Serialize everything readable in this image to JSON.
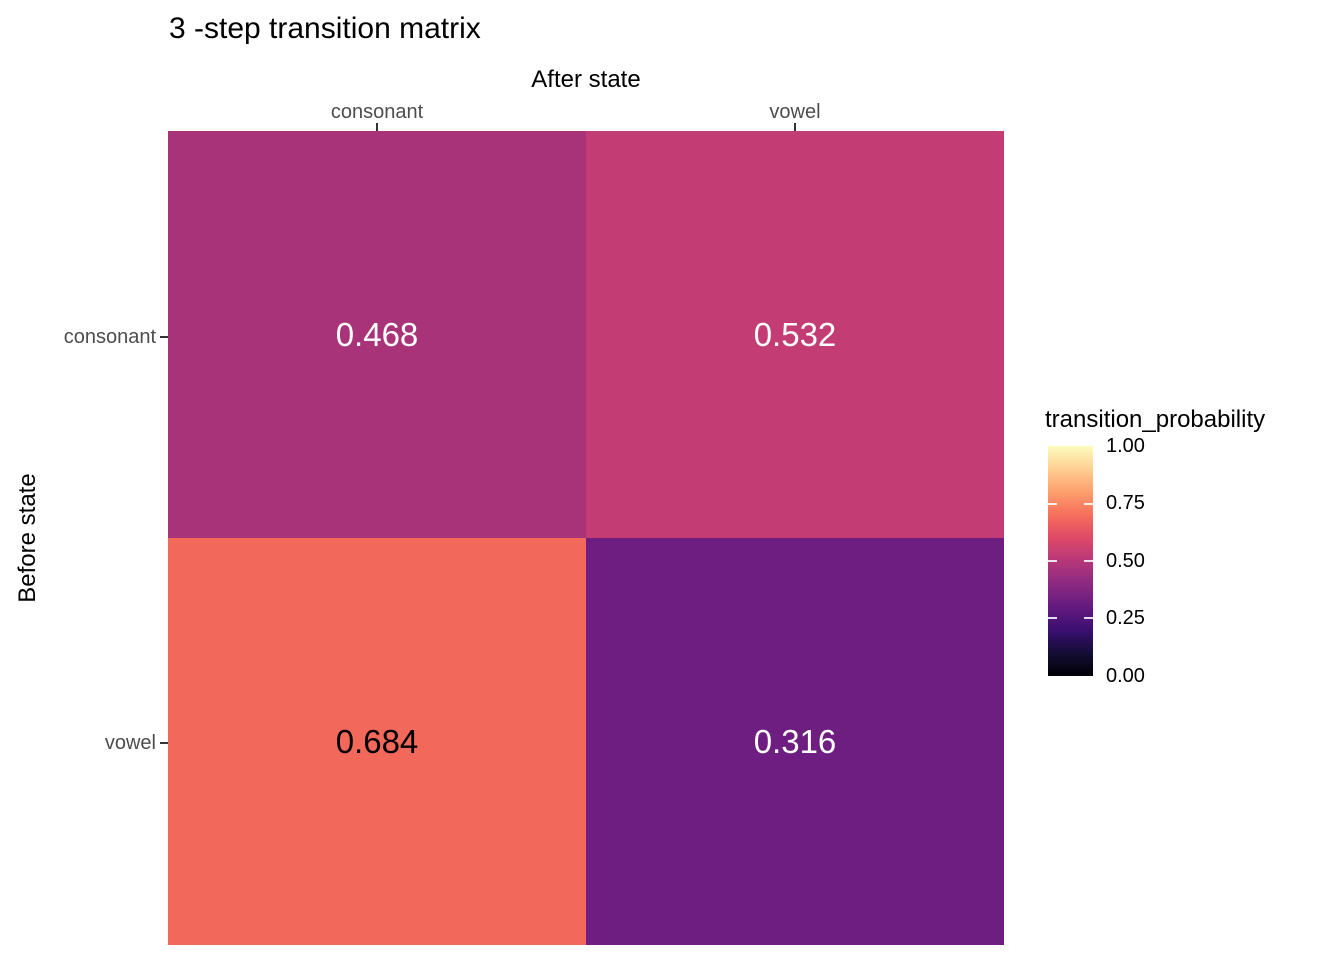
{
  "chart_data": {
    "type": "heatmap",
    "title": "3 -step transition matrix",
    "x_axis": {
      "label": "After state",
      "categories": [
        "consonant",
        "vowel"
      ]
    },
    "y_axis": {
      "label": "Before state",
      "categories": [
        "consonant",
        "vowel"
      ]
    },
    "cells": [
      {
        "before": "consonant",
        "after": "consonant",
        "value": 0.468,
        "label": "0.468",
        "color": "#A93379",
        "text_color": "#FFFFFF"
      },
      {
        "before": "consonant",
        "after": "vowel",
        "value": 0.532,
        "label": "0.532",
        "color": "#C33D74",
        "text_color": "#FFFFFF"
      },
      {
        "before": "vowel",
        "after": "consonant",
        "value": 0.684,
        "label": "0.684",
        "color": "#F2695B",
        "text_color": "#000000"
      },
      {
        "before": "vowel",
        "after": "vowel",
        "value": 0.316,
        "label": "0.316",
        "color": "#6E1E81",
        "text_color": "#FFFFFF"
      }
    ],
    "legend": {
      "title": "transition_probability",
      "tick_labels": [
        "1.00",
        "0.75",
        "0.50",
        "0.25",
        "0.00"
      ],
      "range": [
        0.0,
        1.0
      ],
      "position": "right",
      "colormap": "magma",
      "gradient_stops": [
        "#000004",
        "#140E36",
        "#3B0F70",
        "#641A80",
        "#8C2981",
        "#B73779",
        "#DE4968",
        "#F76F5C",
        "#FE9F6D",
        "#FECF92",
        "#FCFDBF"
      ]
    },
    "layout": {
      "grid": "off",
      "background": "#FFFFFF"
    }
  }
}
